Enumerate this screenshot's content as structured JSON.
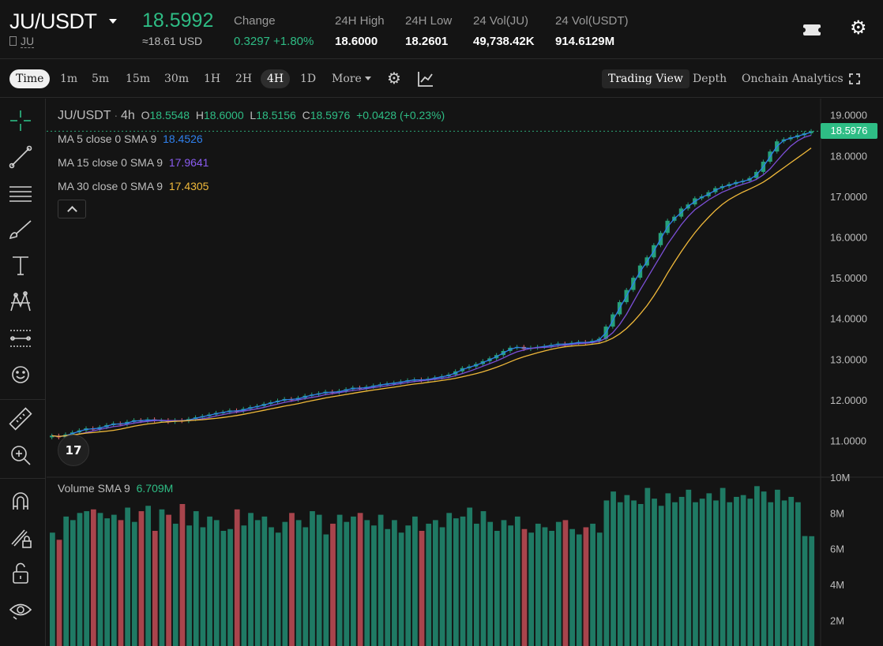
{
  "header": {
    "pair": "JU/USDT",
    "base_token": "JU",
    "last_price": "18.5992",
    "last_price_usd": "≈18.61 USD",
    "stats": [
      {
        "label": "Change",
        "value": "0.3297 +1.80%",
        "green": true
      },
      {
        "label": "24H High",
        "value": "18.6000",
        "green": false
      },
      {
        "label": "24H Low",
        "value": "18.2601",
        "green": false
      },
      {
        "label": "24 Vol(JU)",
        "value": "49,738.42K",
        "green": false
      },
      {
        "label": "24 Vol(USDT)",
        "value": "914.6129M",
        "green": false
      }
    ],
    "icons": [
      "ticket-icon",
      "gear-icon"
    ]
  },
  "toolbar": {
    "time_label": "Time",
    "timeframes": [
      "1m",
      "5m",
      "15m",
      "30m",
      "1H",
      "2H",
      "4H",
      "1D"
    ],
    "active_timeframe": "4H",
    "more_label": "More",
    "views": [
      "Trading View",
      "Depth",
      "Onchain Analytics"
    ],
    "active_view": "Trading View",
    "icons": [
      "indicator-gear-icon",
      "indicators-icon",
      "fullscreen-icon"
    ]
  },
  "left_tools": [
    "crosshair-icon",
    "trendline-icon",
    "fib-lines-icon",
    "brush-icon",
    "text-icon",
    "pattern-icon",
    "forecast-icon",
    "emoji-icon",
    "ruler-icon",
    "zoom-in-icon",
    "magnet-icon",
    "lock-drawing-icon",
    "unlock-icon",
    "eye-icon"
  ],
  "legend": {
    "symbol": "JU/USDT",
    "interval": "4h",
    "ohlc": {
      "o_label": "O",
      "o": "18.5548",
      "h_label": "H",
      "h": "18.6000",
      "l_label": "L",
      "l": "18.5156",
      "c_label": "C",
      "c": "18.5976",
      "chg": "+0.0428 (+0.23%)"
    },
    "ma": [
      {
        "label": "MA 5 close 0 SMA 9",
        "value": "18.4526",
        "color": "#2f80ed"
      },
      {
        "label": "MA 15 close 0 SMA 9",
        "value": "17.9641",
        "color": "#7b4fd8"
      },
      {
        "label": "MA 30 close 0 SMA 9",
        "value": "17.4305",
        "color": "#f0b93a"
      }
    ],
    "volume": {
      "label": "Volume SMA 9",
      "value": "6.709M"
    }
  },
  "price_tag": "18.5976",
  "logo_text": "17",
  "colors": {
    "up": "#26a17b",
    "down": "#e0636b",
    "up_vol": "#1f7a64",
    "down_vol": "#a8444c",
    "accent": "#2ebd85"
  },
  "chart_data": {
    "type": "candlestick",
    "price_axis": {
      "ticks": [
        "19.0000",
        "18.0000",
        "17.0000",
        "16.0000",
        "15.0000",
        "14.0000",
        "13.0000",
        "12.0000",
        "11.0000"
      ],
      "range": [
        10.1,
        19.4
      ]
    },
    "volume_axis": {
      "ticks": [
        "10M",
        "8M",
        "6M",
        "4M",
        "2M"
      ],
      "range": [
        1.0,
        10.0
      ]
    },
    "close_series": [
      11.12,
      11.08,
      11.15,
      11.2,
      11.25,
      11.3,
      11.28,
      11.33,
      11.38,
      11.42,
      11.4,
      11.46,
      11.5,
      11.48,
      11.52,
      11.49,
      11.5,
      11.46,
      11.5,
      11.48,
      11.53,
      11.57,
      11.6,
      11.64,
      11.68,
      11.7,
      11.74,
      11.72,
      11.78,
      11.82,
      11.85,
      11.9,
      11.94,
      11.98,
      12.02,
      12.0,
      12.05,
      12.1,
      12.13,
      12.16,
      12.2,
      12.18,
      12.22,
      12.26,
      12.3,
      12.28,
      12.32,
      12.35,
      12.38,
      12.4,
      12.42,
      12.45,
      12.48,
      12.5,
      12.48,
      12.52,
      12.55,
      12.58,
      12.62,
      12.7,
      12.78,
      12.82,
      12.88,
      12.95,
      13.02,
      13.1,
      13.2,
      13.28,
      13.3,
      13.25,
      13.28,
      13.3,
      13.32,
      13.35,
      13.38,
      13.36,
      13.4,
      13.42,
      13.4,
      13.45,
      13.5,
      13.8,
      14.1,
      14.4,
      14.7,
      15.0,
      15.3,
      15.5,
      15.8,
      16.1,
      16.4,
      16.5,
      16.7,
      16.8,
      16.95,
      17.0,
      17.1,
      17.2,
      17.25,
      17.3,
      17.35,
      17.38,
      17.45,
      17.6,
      17.85,
      18.1,
      18.35,
      18.4,
      18.45,
      18.5,
      18.55,
      18.6
    ],
    "volume_series": [
      6.9,
      6.5,
      7.8,
      7.6,
      8.0,
      8.1,
      8.2,
      8.0,
      7.7,
      7.9,
      7.6,
      8.3,
      7.5,
      8.1,
      8.4,
      7.0,
      8.2,
      7.9,
      7.4,
      8.5,
      7.3,
      8.1,
      7.2,
      7.8,
      7.6,
      7.0,
      7.1,
      8.2,
      7.3,
      8.0,
      7.6,
      7.8,
      7.2,
      6.9,
      7.5,
      8.0,
      7.6,
      7.2,
      8.1,
      7.9,
      6.8,
      7.4,
      7.9,
      7.5,
      7.8,
      8.0,
      7.6,
      7.3,
      7.9,
      7.1,
      7.6,
      6.9,
      7.3,
      7.8,
      7.0,
      7.4,
      7.6,
      7.2,
      8.0,
      7.7,
      7.8,
      8.3,
      7.4,
      8.1,
      7.5,
      7.0,
      7.6,
      7.3,
      7.8,
      7.1,
      6.9,
      7.4,
      7.2,
      7.0,
      7.5,
      7.6,
      7.1,
      6.8,
      7.2,
      7.4,
      6.9,
      8.7,
      9.2,
      8.6,
      9.0,
      8.7,
      8.5,
      9.4,
      8.8,
      8.4,
      9.1,
      8.6,
      8.9,
      9.3,
      8.6,
      8.8,
      9.1,
      8.7,
      9.4,
      8.6,
      8.9,
      9.0,
      8.8,
      9.5,
      9.2,
      8.6,
      9.3,
      8.7,
      8.9,
      8.6,
      6.709,
      6.7
    ]
  }
}
